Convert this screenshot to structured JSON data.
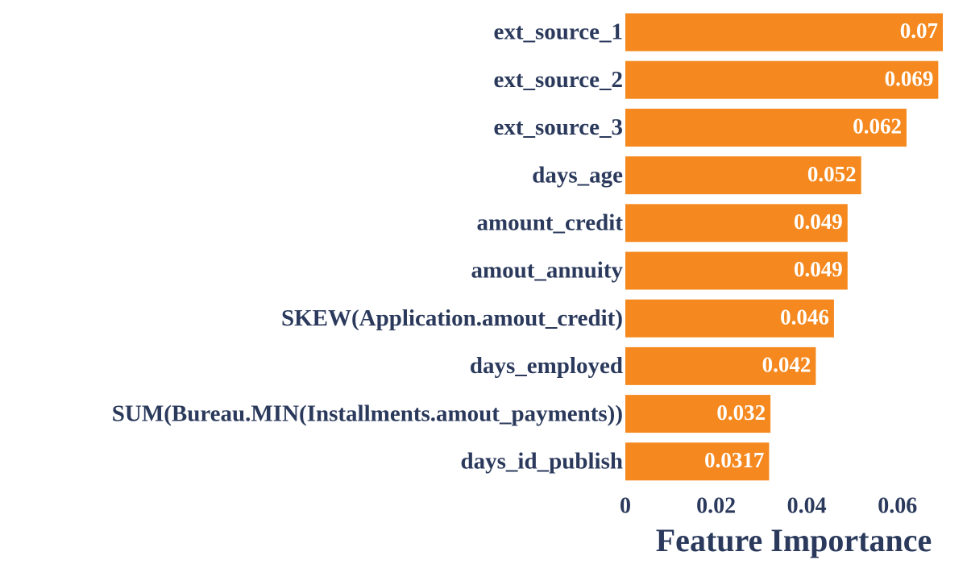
{
  "chart_data": {
    "type": "bar",
    "horizontal": true,
    "xlabel": "Feature Importance",
    "categories": [
      "ext_source_1",
      "ext_source_2",
      "ext_source_3",
      "days_age",
      "amount_credit",
      "amout_annuity",
      "SKEW(Application.amout_credit)",
      "days_employed",
      "SUM(Bureau.MIN(Installments.amout_payments))",
      "days_id_publish"
    ],
    "values": [
      0.07,
      0.069,
      0.062,
      0.052,
      0.049,
      0.049,
      0.046,
      0.042,
      0.032,
      0.0317
    ],
    "color": "#f5891f",
    "xlim": [
      0,
      0.07
    ],
    "xticks": [
      0,
      0.02,
      0.04,
      0.06
    ],
    "grid": false
  }
}
